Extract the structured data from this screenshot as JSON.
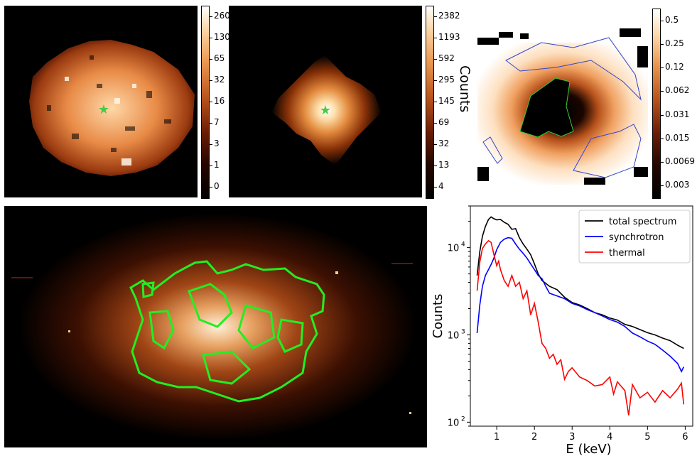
{
  "panels": {
    "panel_a": {
      "colorbar_ticks": [
        "260",
        "130",
        "65",
        "32",
        "16",
        "7",
        "3",
        "1",
        "0"
      ]
    },
    "panel_b": {
      "colorbar_ticks": [
        "2382",
        "1193",
        "592",
        "295",
        "145",
        "69",
        "32",
        "13",
        "4"
      ],
      "colorbar_label": "Counts"
    },
    "panel_c": {
      "colorbar_ticks": [
        "0.5",
        "0.25",
        "0.12",
        "0.062",
        "0.031",
        "0.015",
        "0.0069",
        "0.003"
      ]
    }
  },
  "colors": {
    "total": "#000000",
    "synchrotron": "#0000ff",
    "thermal": "#ff0000",
    "contour": "#22ee22",
    "star": "#44cc44"
  },
  "chart_data": {
    "type": "line",
    "title": "",
    "xlabel": "E (keV)",
    "ylabel": "Counts",
    "xlim": [
      0.3,
      6.2
    ],
    "ylim": [
      90,
      30000
    ],
    "yscale": "log",
    "xticks": [
      1,
      2,
      3,
      4,
      5,
      6
    ],
    "xtick_labels": [
      "1",
      "2",
      "3",
      "4",
      "5",
      "6"
    ],
    "yticks": [
      100,
      1000,
      10000
    ],
    "ytick_labels": [
      "10",
      "10",
      "10"
    ],
    "ytick_exponents": [
      "2",
      "3",
      "4"
    ],
    "legend_position": "top-right",
    "series": [
      {
        "name": "total spectrum",
        "color": "#000000",
        "x": [
          0.48,
          0.55,
          0.62,
          0.7,
          0.78,
          0.85,
          0.92,
          1.0,
          1.1,
          1.2,
          1.3,
          1.4,
          1.5,
          1.6,
          1.7,
          1.8,
          1.9,
          2.0,
          2.1,
          2.2,
          2.3,
          2.4,
          2.6,
          2.8,
          3.0,
          3.2,
          3.4,
          3.6,
          3.8,
          4.0,
          4.2,
          4.4,
          4.6,
          4.8,
          5.0,
          5.2,
          5.4,
          5.6,
          5.8,
          5.96
        ],
        "y": [
          4800,
          9000,
          13500,
          17500,
          21000,
          22500,
          21500,
          20800,
          21000,
          19500,
          18500,
          16200,
          16500,
          13000,
          11000,
          9600,
          8300,
          6500,
          5000,
          4200,
          3900,
          3600,
          3300,
          2700,
          2350,
          2200,
          2000,
          1800,
          1700,
          1560,
          1480,
          1320,
          1250,
          1150,
          1060,
          1000,
          920,
          860,
          760,
          700
        ]
      },
      {
        "name": "synchrotron",
        "color": "#0000ff",
        "x": [
          0.48,
          0.55,
          0.62,
          0.7,
          0.78,
          0.85,
          0.92,
          1.0,
          1.1,
          1.2,
          1.3,
          1.4,
          1.5,
          1.6,
          1.7,
          1.8,
          1.9,
          2.0,
          2.1,
          2.2,
          2.3,
          2.4,
          2.6,
          2.8,
          3.0,
          3.2,
          3.4,
          3.6,
          3.8,
          4.0,
          4.2,
          4.4,
          4.6,
          4.8,
          5.0,
          5.2,
          5.4,
          5.6,
          5.8,
          5.9,
          5.96
        ],
        "y": [
          1050,
          2200,
          3600,
          4800,
          5600,
          6400,
          7500,
          9500,
          11500,
          12500,
          13000,
          12800,
          11000,
          9600,
          8600,
          7600,
          6500,
          5600,
          4800,
          4400,
          3600,
          3000,
          2800,
          2600,
          2300,
          2150,
          1950,
          1800,
          1650,
          1500,
          1400,
          1250,
          1050,
          950,
          850,
          780,
          670,
          570,
          470,
          380,
          430
        ]
      },
      {
        "name": "thermal",
        "color": "#ff0000",
        "x": [
          0.48,
          0.55,
          0.62,
          0.7,
          0.78,
          0.85,
          0.92,
          1.0,
          1.05,
          1.1,
          1.2,
          1.3,
          1.4,
          1.5,
          1.6,
          1.7,
          1.8,
          1.9,
          2.0,
          2.1,
          2.2,
          2.3,
          2.4,
          2.5,
          2.6,
          2.7,
          2.8,
          2.9,
          3.0,
          3.2,
          3.4,
          3.6,
          3.8,
          4.0,
          4.1,
          4.2,
          4.4,
          4.5,
          4.6,
          4.8,
          5.0,
          5.2,
          5.4,
          5.6,
          5.8,
          5.9,
          5.96
        ],
        "y": [
          3200,
          6800,
          9800,
          11000,
          12000,
          11500,
          8500,
          6200,
          7000,
          5600,
          4200,
          3600,
          4800,
          3600,
          4000,
          2600,
          3200,
          1700,
          2300,
          1400,
          800,
          700,
          540,
          600,
          460,
          520,
          310,
          380,
          420,
          330,
          300,
          260,
          270,
          330,
          210,
          290,
          230,
          120,
          270,
          190,
          220,
          170,
          230,
          190,
          240,
          280,
          160
        ]
      }
    ]
  }
}
